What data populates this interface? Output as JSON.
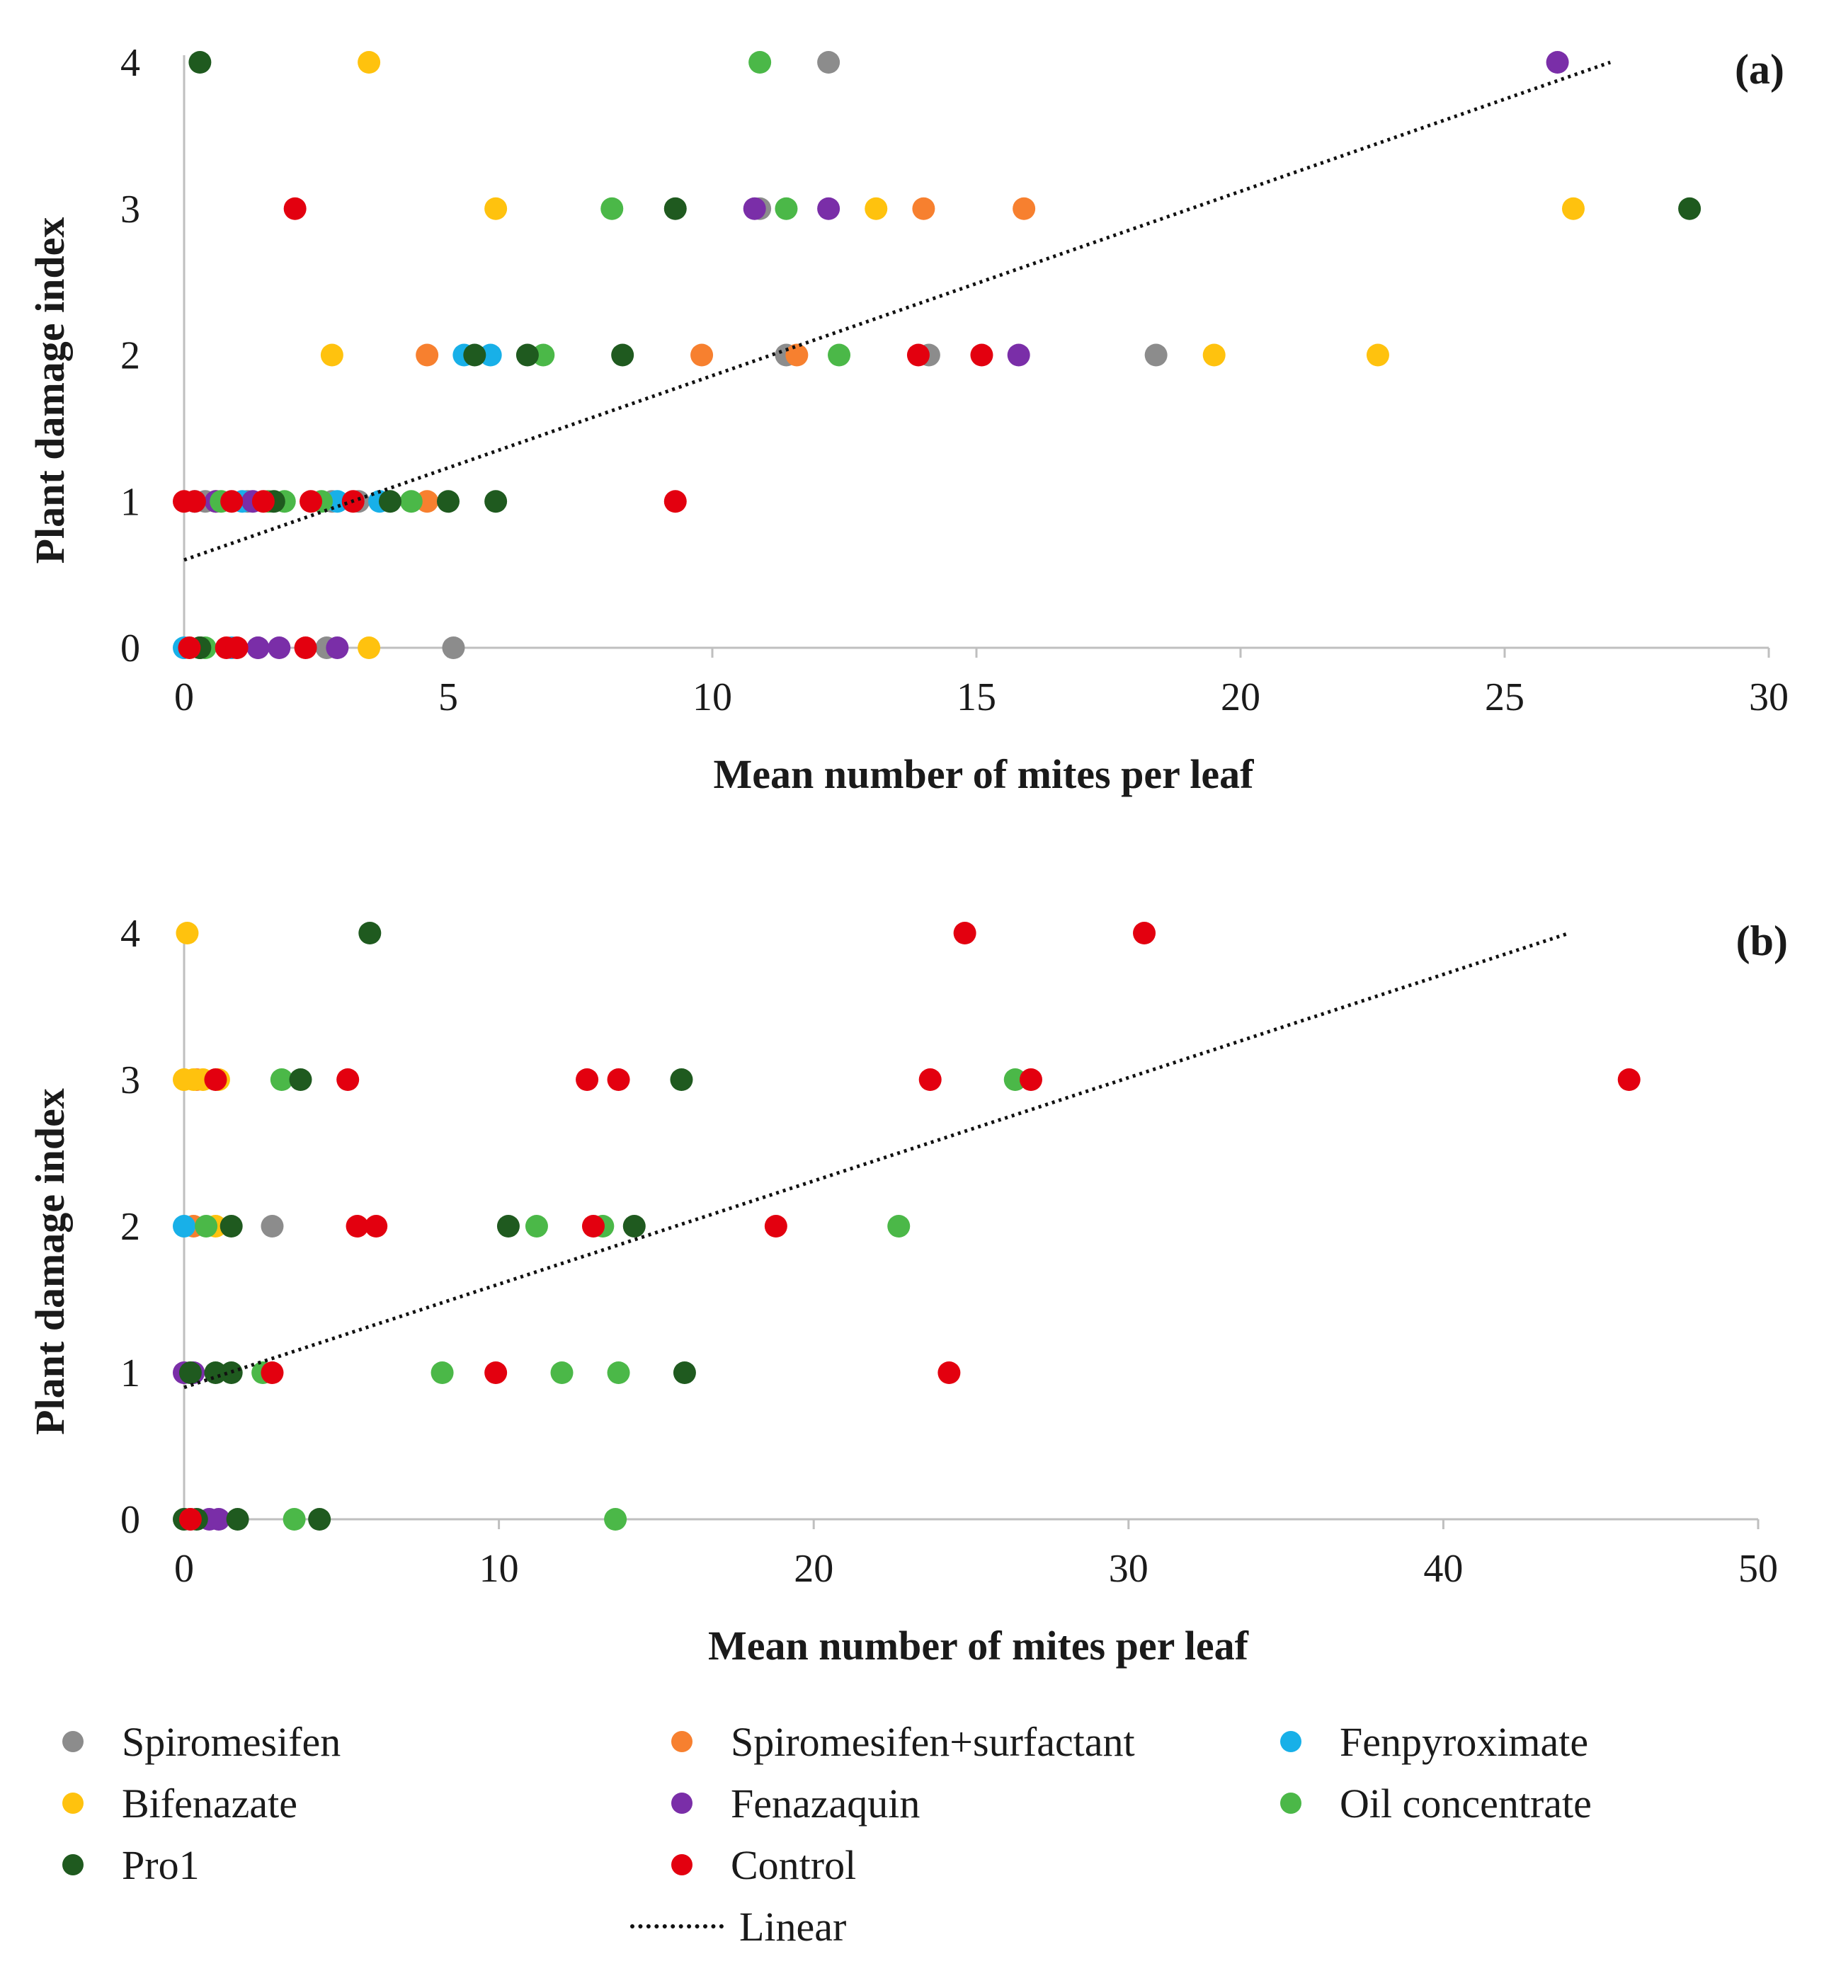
{
  "colors": {
    "Spiromesifen": "#8c8c8c",
    "Spiromesifen+surfactant": "#f7802f",
    "Fenpyroximate": "#18b0e8",
    "Bifenazate": "#ffc20e",
    "Fenazaquin": "#7a2ea8",
    "Oil concentrate": "#4bb848",
    "Pro1": "#1f5a1f",
    "Control": "#e3000f"
  },
  "chart_data": [
    {
      "type": "scatter",
      "panel_label": "(a)",
      "xlabel": "Mean number of mites per leaf",
      "ylabel": "Plant damage index",
      "xlim": [
        0,
        30
      ],
      "ylim": [
        0,
        4
      ],
      "x_ticks": [
        "0",
        "5",
        "10",
        "15",
        "20",
        "25",
        "30"
      ],
      "y_ticks": [
        "0",
        "1",
        "2",
        "3",
        "4"
      ],
      "trendline": {
        "name": "Linear",
        "x": [
          0,
          27
        ],
        "y": [
          0.6,
          4.0
        ]
      },
      "series": [
        {
          "name": "Spiromesifen",
          "points": [
            [
              12.2,
              4
            ],
            [
              10.9,
              3
            ],
            [
              11.4,
              2
            ],
            [
              14.1,
              2
            ],
            [
              18.4,
              2
            ],
            [
              0.4,
              1
            ],
            [
              1.2,
              1
            ],
            [
              2.8,
              1
            ],
            [
              3.3,
              1
            ],
            [
              0.3,
              0
            ],
            [
              1.4,
              0
            ],
            [
              2.7,
              0
            ],
            [
              5.1,
              0
            ]
          ]
        },
        {
          "name": "Spiromesifen+surfactant",
          "points": [
            [
              14.0,
              3
            ],
            [
              15.9,
              3
            ],
            [
              4.6,
              2
            ],
            [
              9.8,
              2
            ],
            [
              11.6,
              2
            ],
            [
              0.6,
              1
            ],
            [
              4.6,
              1
            ]
          ]
        },
        {
          "name": "Fenpyroximate",
          "points": [
            [
              5.3,
              2
            ],
            [
              5.8,
              2
            ],
            [
              0.2,
              1
            ],
            [
              1.1,
              1
            ],
            [
              2.9,
              1
            ],
            [
              3.7,
              1
            ],
            [
              0.0,
              0
            ],
            [
              0.9,
              0
            ]
          ]
        },
        {
          "name": "Bifenazate",
          "points": [
            [
              3.5,
              4
            ],
            [
              5.9,
              3
            ],
            [
              13.1,
              3
            ],
            [
              26.3,
              3
            ],
            [
              2.8,
              2
            ],
            [
              19.5,
              2
            ],
            [
              22.6,
              2
            ],
            [
              3.5,
              0
            ]
          ]
        },
        {
          "name": "Fenazaquin",
          "points": [
            [
              26.0,
              4
            ],
            [
              10.8,
              3
            ],
            [
              12.2,
              3
            ],
            [
              15.8,
              2
            ],
            [
              0.6,
              1
            ],
            [
              1.3,
              1
            ],
            [
              1.4,
              0
            ],
            [
              1.8,
              0
            ],
            [
              2.9,
              0
            ]
          ]
        },
        {
          "name": "Oil concentrate",
          "points": [
            [
              10.9,
              4
            ],
            [
              8.1,
              3
            ],
            [
              11.4,
              3
            ],
            [
              6.8,
              2
            ],
            [
              12.4,
              2
            ],
            [
              0.7,
              1
            ],
            [
              1.6,
              1
            ],
            [
              1.9,
              1
            ],
            [
              2.6,
              1
            ],
            [
              4.3,
              1
            ],
            [
              0.3,
              0
            ],
            [
              0.4,
              0
            ]
          ]
        },
        {
          "name": "Pro1",
          "points": [
            [
              0.3,
              4
            ],
            [
              9.3,
              3
            ],
            [
              28.5,
              3
            ],
            [
              5.5,
              2
            ],
            [
              6.5,
              2
            ],
            [
              8.3,
              2
            ],
            [
              1.7,
              1
            ],
            [
              3.9,
              1
            ],
            [
              5.0,
              1
            ],
            [
              5.9,
              1
            ],
            [
              0.3,
              0
            ]
          ]
        },
        {
          "name": "Control",
          "points": [
            [
              2.1,
              3
            ],
            [
              13.9,
              2
            ],
            [
              15.1,
              2
            ],
            [
              0.0,
              1
            ],
            [
              0.2,
              1
            ],
            [
              0.9,
              1
            ],
            [
              1.5,
              1
            ],
            [
              2.4,
              1
            ],
            [
              3.2,
              1
            ],
            [
              9.3,
              1
            ],
            [
              0.1,
              0
            ],
            [
              0.8,
              0
            ],
            [
              1.0,
              0
            ],
            [
              2.3,
              0
            ]
          ]
        }
      ]
    },
    {
      "type": "scatter",
      "panel_label": "(b)",
      "xlabel": "Mean number of mites per leaf",
      "ylabel": "Plant damage index",
      "xlim": [
        0,
        50
      ],
      "ylim": [
        0,
        4
      ],
      "x_ticks": [
        "0",
        "10",
        "20",
        "30",
        "40",
        "50"
      ],
      "y_ticks": [
        "0",
        "1",
        "2",
        "3",
        "4"
      ],
      "trendline": {
        "name": "Linear",
        "x": [
          0,
          44
        ],
        "y": [
          0.9,
          4.0
        ]
      },
      "series": [
        {
          "name": "Spiromesifen",
          "points": [
            [
              2.8,
              2
            ],
            [
              0.2,
              0
            ]
          ]
        },
        {
          "name": "Spiromesifen+surfactant",
          "points": [
            [
              0.3,
              2
            ],
            [
              0.4,
              3
            ]
          ]
        },
        {
          "name": "Fenpyroximate",
          "points": [
            [
              0.0,
              2
            ]
          ]
        },
        {
          "name": "Bifenazate",
          "points": [
            [
              0.1,
              4
            ],
            [
              0.0,
              3
            ],
            [
              0.3,
              3
            ],
            [
              0.6,
              3
            ],
            [
              1.1,
              3
            ],
            [
              1.0,
              2
            ]
          ]
        },
        {
          "name": "Fenazaquin",
          "points": [
            [
              0.0,
              1
            ],
            [
              0.3,
              1
            ],
            [
              0.8,
              0
            ],
            [
              1.1,
              0
            ]
          ]
        },
        {
          "name": "Oil concentrate",
          "points": [
            [
              3.1,
              3
            ],
            [
              26.4,
              3
            ],
            [
              0.7,
              2
            ],
            [
              11.2,
              2
            ],
            [
              13.3,
              2
            ],
            [
              22.7,
              2
            ],
            [
              2.5,
              1
            ],
            [
              8.2,
              1
            ],
            [
              12.0,
              1
            ],
            [
              13.8,
              1
            ],
            [
              3.5,
              0
            ],
            [
              13.7,
              0
            ]
          ]
        },
        {
          "name": "Pro1",
          "points": [
            [
              5.9,
              4
            ],
            [
              3.7,
              3
            ],
            [
              15.8,
              3
            ],
            [
              1.5,
              2
            ],
            [
              10.3,
              2
            ],
            [
              14.3,
              2
            ],
            [
              0.2,
              1
            ],
            [
              1.0,
              1
            ],
            [
              1.5,
              1
            ],
            [
              15.9,
              1
            ],
            [
              0.0,
              0
            ],
            [
              0.4,
              0
            ],
            [
              1.7,
              0
            ],
            [
              4.3,
              0
            ]
          ]
        },
        {
          "name": "Control",
          "points": [
            [
              24.8,
              4
            ],
            [
              30.5,
              4
            ],
            [
              1.0,
              3
            ],
            [
              5.2,
              3
            ],
            [
              12.8,
              3
            ],
            [
              13.8,
              3
            ],
            [
              23.7,
              3
            ],
            [
              26.9,
              3
            ],
            [
              45.9,
              3
            ],
            [
              5.5,
              2
            ],
            [
              6.1,
              2
            ],
            [
              13.0,
              2
            ],
            [
              18.8,
              2
            ],
            [
              2.8,
              1
            ],
            [
              9.9,
              1
            ],
            [
              24.3,
              1
            ],
            [
              0.2,
              0
            ]
          ]
        }
      ]
    }
  ],
  "legend": {
    "items": [
      {
        "label": "Spiromesifen",
        "series": "Spiromesifen"
      },
      {
        "label": "Spiromesifen+surfactant",
        "series": "Spiromesifen+surfactant"
      },
      {
        "label": "Fenpyroximate",
        "series": "Fenpyroximate"
      },
      {
        "label": "Bifenazate",
        "series": "Bifenazate"
      },
      {
        "label": "Fenazaquin",
        "series": "Fenazaquin"
      },
      {
        "label": "Oil concentrate",
        "series": "Oil concentrate"
      },
      {
        "label": "Pro1",
        "series": "Pro1"
      },
      {
        "label": "Control",
        "series": "Control"
      }
    ],
    "linear_label": "Linear"
  }
}
